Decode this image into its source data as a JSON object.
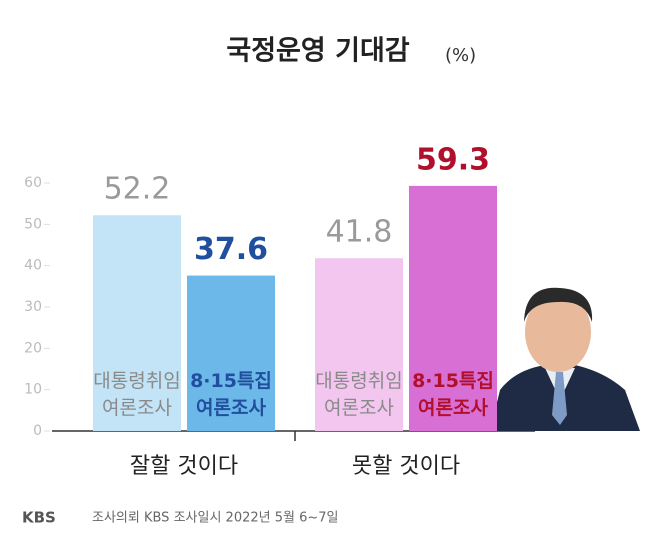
{
  "chart_data": {
    "type": "bar",
    "title": "국정운영 기대감",
    "unit": "(%)",
    "categories": [
      "잘할 것이다",
      "못할 것이다"
    ],
    "series": [
      {
        "name": "대통령취임\n여론조사",
        "colors": [
          "#c2e4f6",
          "#f3c6f0"
        ],
        "label_color": [
          "#9a9a9a",
          "#9a9a9a"
        ],
        "values": [
          52.2,
          41.8
        ]
      },
      {
        "name": "8·15특집\n여론조사",
        "colors": [
          "#6cb8e9",
          "#d86fd4"
        ],
        "label_color": [
          "#1f4f9e",
          "#b1102c"
        ],
        "values": [
          37.6,
          59.3
        ]
      }
    ],
    "ylim": [
      0,
      60
    ],
    "yticks": [
      0,
      10,
      20,
      30,
      40,
      50,
      60
    ],
    "logo": "KBS",
    "footer": "조사의뢰 KBS  조사일시 2022년 5월 6~7일"
  }
}
